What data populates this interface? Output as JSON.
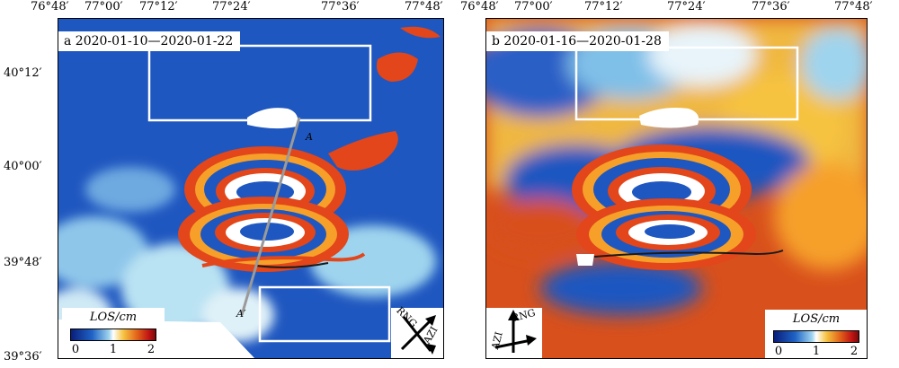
{
  "top_ticks": [
    "76°48′",
    "77°00′",
    "77°12′",
    "77°24′",
    "77°36′",
    "77°48′"
  ],
  "left_ticks": [
    "40°12′",
    "40°00′",
    "39°48′",
    "39°36′"
  ],
  "panels": [
    {
      "title": "a 2020-01-10—2020-01-22",
      "legend": {
        "label": "LOS/cm",
        "ticks": [
          "0",
          "1",
          "2"
        ]
      },
      "compass": {
        "rng": "RNG",
        "azi": "AZI"
      },
      "profile": {
        "start": "A",
        "end": "A′"
      }
    },
    {
      "title": "b 2020-01-16—2020-01-28",
      "legend": {
        "label": "LOS/cm",
        "ticks": [
          "0",
          "1",
          "2"
        ]
      },
      "compass": {
        "rng": "RNG",
        "azi": "AZI"
      }
    }
  ],
  "colormap": {
    "min": "#0a1e7a",
    "mid": "#ffffff",
    "max": "#7a0a0a",
    "fringe_red": "#e2461a",
    "fringe_orange": "#f6a02a"
  }
}
